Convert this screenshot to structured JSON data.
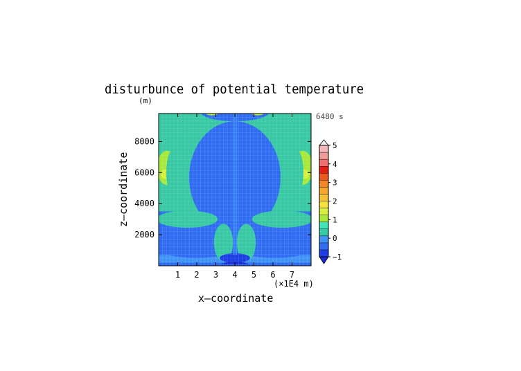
{
  "chart_data": {
    "type": "heatmap",
    "title": "disturbunce of potential temperature",
    "y_unit_label": "(m)",
    "time_label": "6480 s",
    "xlabel": "x—coordinate",
    "ylabel": "z—coordinate",
    "x_unit_label": "(×1E4 m)",
    "xlim": [
      0,
      8
    ],
    "ylim": [
      0,
      9800
    ],
    "x_ticks": [
      1,
      2,
      3,
      4,
      5,
      6,
      7
    ],
    "x_tick_labels": [
      "1",
      "2",
      "3",
      "4",
      "5",
      "6",
      "7"
    ],
    "y_ticks": [
      2000,
      4000,
      6000,
      8000
    ],
    "y_tick_labels": [
      "2000",
      "4000",
      "6000",
      "8000"
    ],
    "colorbar": {
      "levels": [
        -1,
        0,
        1,
        2,
        3,
        4,
        5
      ],
      "tick_labels": [
        "−1",
        "0",
        "1",
        "2",
        "3",
        "4",
        "5"
      ],
      "extend": "both",
      "colors": [
        "#1b3ee6",
        "#2f6cf2",
        "#3f93f7",
        "#37c8a4",
        "#3ee7b9",
        "#a8e83a",
        "#d7f03b",
        "#f5e33a",
        "#f7c233",
        "#f7a52b",
        "#f28628",
        "#ee5a1e",
        "#e51e14",
        "#ef6f6f",
        "#f09a9a",
        "#f5b7b7"
      ],
      "under_color": "#1a2ad0",
      "over_color": "#f4f4f4"
    },
    "grid": false,
    "field": {
      "values_in": "data units (x in 1E4 m, z in m, value in K)",
      "fill_value": -0.4,
      "regions": [
        {
          "shape": "band",
          "z_range": [
            3500,
            9800
          ],
          "value": 0.3
        },
        {
          "shape": "band",
          "z_range": [
            200,
            700
          ],
          "value": -0.1
        },
        {
          "shape": "ellipse",
          "center": [
            4.0,
            5700
          ],
          "radius": [
            2.4,
            3600
          ],
          "value": -0.5
        },
        {
          "shape": "ellipse",
          "center": [
            2.0,
            1150
          ],
          "radius": [
            2.0,
            650
          ],
          "value": -0.35
        },
        {
          "shape": "ellipse",
          "center": [
            6.1,
            1150
          ],
          "radius": [
            1.9,
            650
          ],
          "value": -0.35
        },
        {
          "shape": "ellipse",
          "center": [
            1.5,
            3000
          ],
          "radius": [
            1.6,
            550
          ],
          "value": 0.3
        },
        {
          "shape": "ellipse",
          "center": [
            6.5,
            3000
          ],
          "radius": [
            1.6,
            550
          ],
          "value": 0.3
        },
        {
          "shape": "ellipse",
          "center": [
            0.45,
            6300
          ],
          "radius": [
            0.55,
            1100
          ],
          "value": 0.9
        },
        {
          "shape": "ellipse",
          "center": [
            7.55,
            6300
          ],
          "radius": [
            0.55,
            1100
          ],
          "value": 0.9
        },
        {
          "shape": "ellipse",
          "center": [
            0.35,
            5900
          ],
          "radius": [
            0.25,
            300
          ],
          "value": 1.5
        },
        {
          "shape": "ellipse",
          "center": [
            7.65,
            5900
          ],
          "radius": [
            0.25,
            300
          ],
          "value": 1.5
        },
        {
          "shape": "ellipse",
          "center": [
            1.0,
            6000
          ],
          "radius": [
            0.6,
            1800
          ],
          "value": 0.3
        },
        {
          "shape": "ellipse",
          "center": [
            7.0,
            6000
          ],
          "radius": [
            0.6,
            1800
          ],
          "value": 0.3
        },
        {
          "shape": "ellipse",
          "center": [
            4.0,
            9900
          ],
          "radius": [
            1.8,
            600
          ],
          "value": -0.5
        },
        {
          "shape": "ellipse",
          "center": [
            3.4,
            1500
          ],
          "radius": [
            0.5,
            1200
          ],
          "value": 0.3
        },
        {
          "shape": "ellipse",
          "center": [
            4.6,
            1500
          ],
          "radius": [
            0.5,
            1200
          ],
          "value": 0.3
        },
        {
          "shape": "ellipse",
          "center": [
            4.0,
            500
          ],
          "radius": [
            0.8,
            300
          ],
          "value": -0.8
        },
        {
          "shape": "ellipse",
          "center": [
            4.0,
            100
          ],
          "radius": [
            0.7,
            150
          ],
          "value": -1.2
        },
        {
          "shape": "ellipse",
          "center": [
            2.8,
            9800
          ],
          "radius": [
            0.3,
            120
          ],
          "value": 1.2
        },
        {
          "shape": "ellipse",
          "center": [
            5.2,
            9800
          ],
          "radius": [
            0.3,
            120
          ],
          "value": 1.2
        },
        {
          "shape": "band",
          "z_range": [
            0,
            100
          ],
          "value": -0.6
        }
      ],
      "vertical_lines": [
        {
          "x": 3.95,
          "z_range": [
            700,
            9800
          ],
          "value": -0.1
        },
        {
          "x": 4.08,
          "z_range": [
            700,
            9800
          ],
          "value": -0.1
        }
      ]
    }
  }
}
